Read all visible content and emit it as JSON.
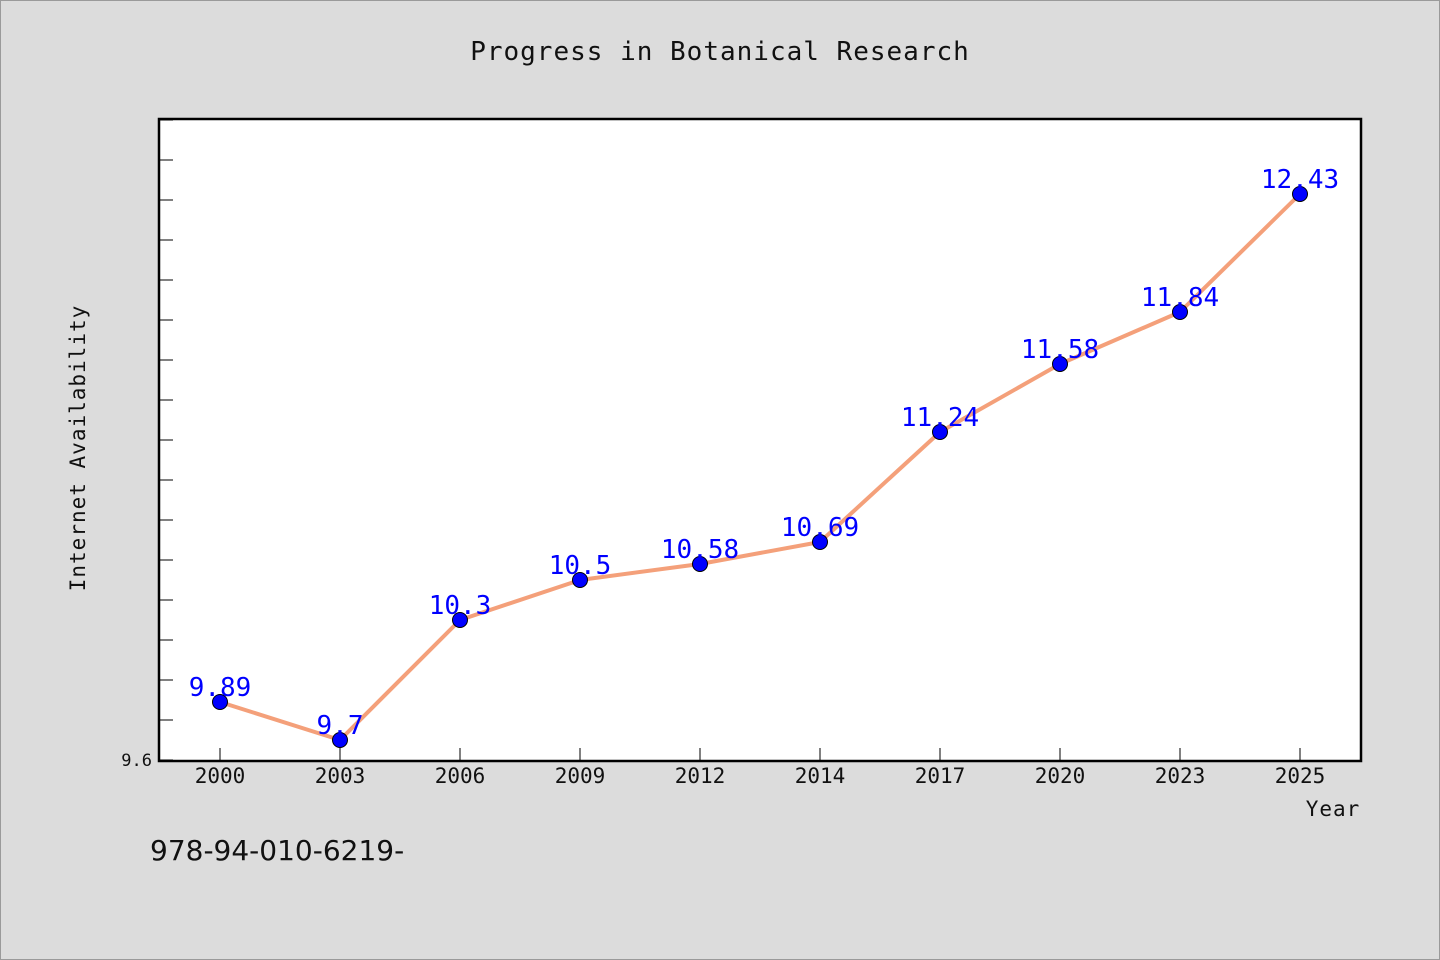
{
  "chart_data": {
    "type": "line",
    "title": "Progress in Botanical Research",
    "xlabel": "Year",
    "ylabel": "Internet Availability",
    "categories": [
      "2000",
      "2003",
      "2006",
      "2009",
      "2012",
      "2014",
      "2017",
      "2020",
      "2023",
      "2025"
    ],
    "series": [
      {
        "values": [
          9.89,
          9.7,
          10.3,
          10.5,
          10.58,
          10.69,
          11.24,
          11.58,
          11.84,
          12.43
        ],
        "labels": [
          "9.89",
          "9.7",
          "10.3",
          "10.5",
          "10.58",
          "10.69",
          "11.24",
          "11.58",
          "11.84",
          "12.43"
        ],
        "line_color": "#f4a07a",
        "marker_color": "#0000ff",
        "label_color": "#0000ff"
      }
    ],
    "ylim": [
      9.6,
      12.8
    ],
    "ytick_labels": [
      "9.6"
    ],
    "grid": false,
    "legend": "none"
  },
  "footer": {
    "isbn_text": "978-94-010-6219-"
  }
}
